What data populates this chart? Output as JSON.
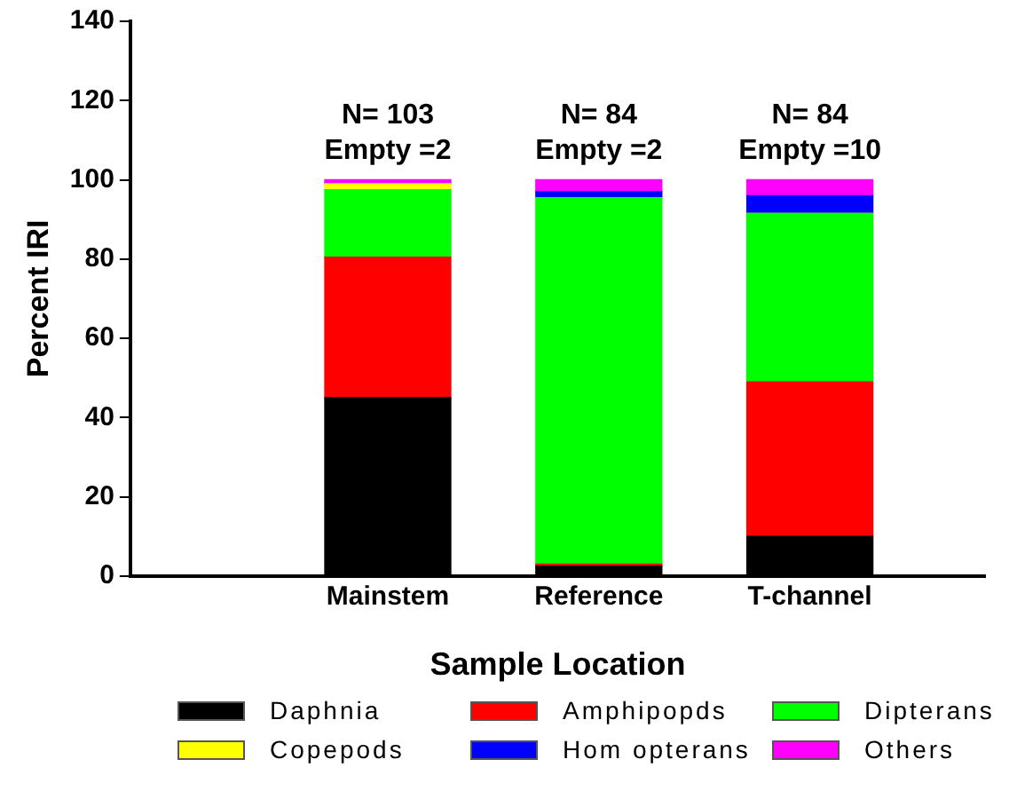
{
  "chart_data": {
    "type": "bar",
    "stacked": true,
    "xlabel": "Sample Location",
    "ylabel": "Percent IRI",
    "categories": [
      "Mainstem",
      "Reference",
      "T-channel"
    ],
    "series": [
      {
        "name": "Daphnia",
        "color": "#000000",
        "values": [
          45,
          2.5,
          10
        ]
      },
      {
        "name": "Amphipopds",
        "color": "#ff0000",
        "values": [
          35.5,
          0.5,
          39
        ]
      },
      {
        "name": "Dipterans",
        "color": "#00ff00",
        "values": [
          17,
          92.5,
          42.5
        ]
      },
      {
        "name": "Copepods",
        "color": "#ffff00",
        "values": [
          1.5,
          0,
          0
        ]
      },
      {
        "name": "Hom opterans",
        "color": "#0000ff",
        "values": [
          0,
          1.5,
          4.5
        ]
      },
      {
        "name": "Others",
        "color": "#ff00ff",
        "values": [
          1,
          3,
          4
        ]
      }
    ],
    "ylim": [
      0,
      140
    ],
    "yticks": [
      0,
      20,
      40,
      60,
      80,
      100,
      120,
      140
    ],
    "grid": false,
    "legend": "bottom",
    "annotations": [
      "N= 103\nEmpty =2",
      "N= 84\nEmpty =2",
      "N= 84\nEmpty =10"
    ]
  }
}
